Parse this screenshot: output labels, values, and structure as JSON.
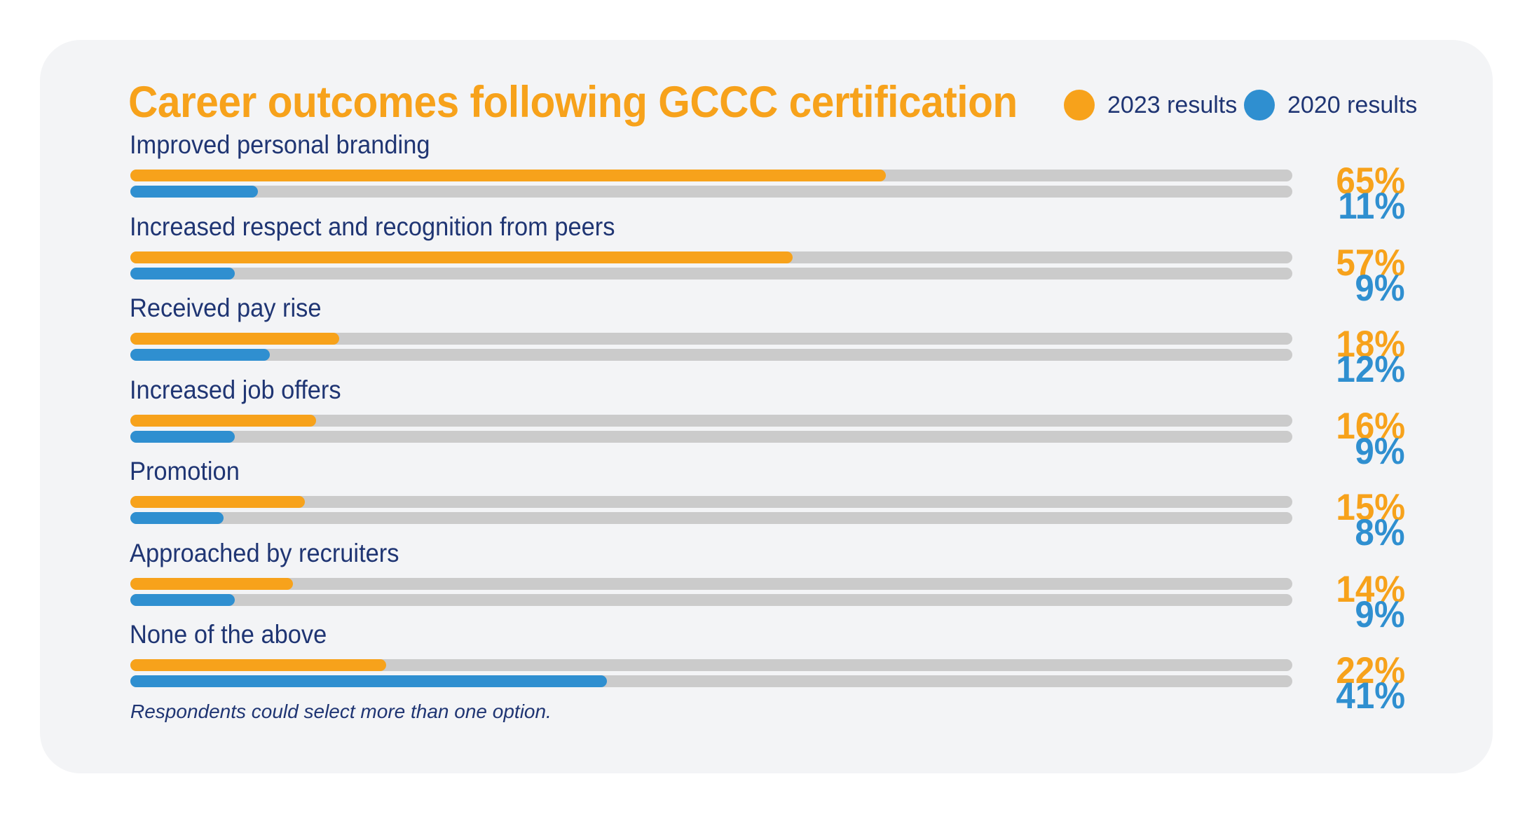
{
  "chart_data": {
    "type": "bar",
    "title": "Career outcomes following GCCC certification",
    "categories": [
      "Improved personal branding",
      "Increased respect and recognition from peers",
      "Received pay rise",
      "Increased job offers",
      "Promotion",
      "Approached by recruiters",
      "None of the above"
    ],
    "series": [
      {
        "name": "2023 results",
        "values": [
          65,
          57,
          18,
          16,
          15,
          14,
          22
        ],
        "value_labels": [
          "65%",
          "57%",
          "18%",
          "16%",
          "15%",
          "14%",
          "22%"
        ]
      },
      {
        "name": "2020 results",
        "values": [
          11,
          9,
          12,
          9,
          8,
          9,
          41
        ],
        "value_labels": [
          "11%",
          "9%",
          "12%",
          "9%",
          "8%",
          "9%",
          "41%"
        ]
      }
    ],
    "xlim": [
      0,
      100
    ],
    "orientation": "horizontal",
    "grid": false,
    "legend_position": "top-right",
    "footnote": "Respondents could select more than one option."
  },
  "colors": {
    "series_2023": "#f7a21b",
    "series_2020": "#2f8fd0",
    "track": "#cbcbcb",
    "text": "#1f3573",
    "card": "#f3f4f6"
  }
}
